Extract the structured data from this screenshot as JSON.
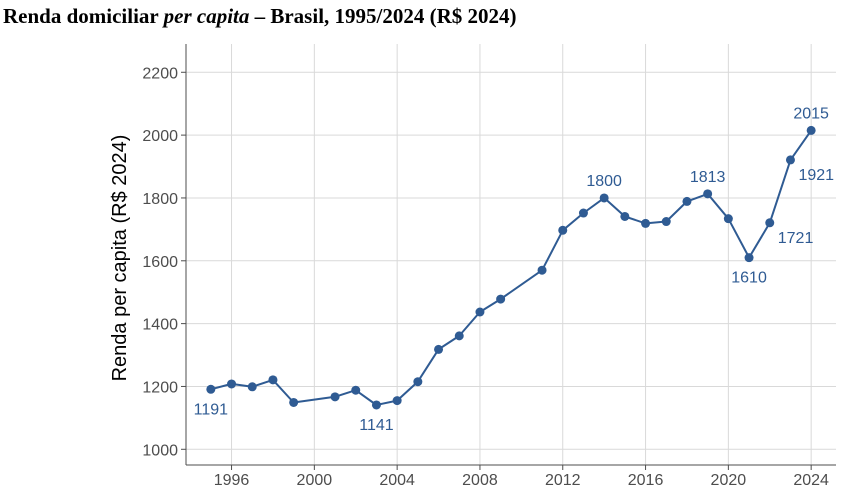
{
  "chart_data": {
    "type": "line",
    "title": {
      "part1": "Renda domiciliar ",
      "part2_italic": "per capita",
      "part3": " – Brasil, 1995/2024 (R$ 2024)"
    },
    "xlabel": "",
    "ylabel": "Renda per capita (R$ 2024)",
    "xlim": [
      1993.8,
      2025.2
    ],
    "ylim": [
      950,
      2290
    ],
    "x_ticks": [
      1996,
      2000,
      2004,
      2008,
      2012,
      2016,
      2020,
      2024
    ],
    "y_ticks": [
      1000,
      1200,
      1400,
      1600,
      1800,
      2000,
      2200
    ],
    "grid": true,
    "legend": "none",
    "colors": {
      "series": "#2f5b93",
      "grid": "#d9d9d9",
      "axis": "#4d4d4d",
      "label": "#2f5b93"
    },
    "series": [
      {
        "x": [
          1995,
          1996,
          1997,
          1998,
          1999,
          2001,
          2002,
          2003,
          2004,
          2005,
          2006,
          2007,
          2008,
          2009,
          2011,
          2012,
          2013,
          2014,
          2015,
          2016,
          2017,
          2018,
          2019,
          2020,
          2021,
          2022,
          2023,
          2024
        ],
        "values": [
          1191,
          1208,
          1199,
          1221,
          1149,
          1167,
          1188,
          1141,
          1155,
          1215,
          1318,
          1361,
          1437,
          1478,
          1570,
          1697,
          1752,
          1800,
          1741,
          1719,
          1725,
          1789,
          1813,
          1734,
          1610,
          1721,
          1921,
          2015
        ]
      }
    ],
    "annotations": [
      {
        "x": 1995,
        "y": 1191,
        "text": "1191",
        "position": "below"
      },
      {
        "x": 2003,
        "y": 1141,
        "text": "1141",
        "position": "below"
      },
      {
        "x": 2014,
        "y": 1800,
        "text": "1800",
        "position": "above"
      },
      {
        "x": 2019,
        "y": 1813,
        "text": "1813",
        "position": "above"
      },
      {
        "x": 2021,
        "y": 1610,
        "text": "1610",
        "position": "below"
      },
      {
        "x": 2022,
        "y": 1721,
        "text": "1721",
        "position": "below-right"
      },
      {
        "x": 2023,
        "y": 1921,
        "text": "1921",
        "position": "below-right"
      },
      {
        "x": 2024,
        "y": 2015,
        "text": "2015",
        "position": "above"
      }
    ]
  }
}
